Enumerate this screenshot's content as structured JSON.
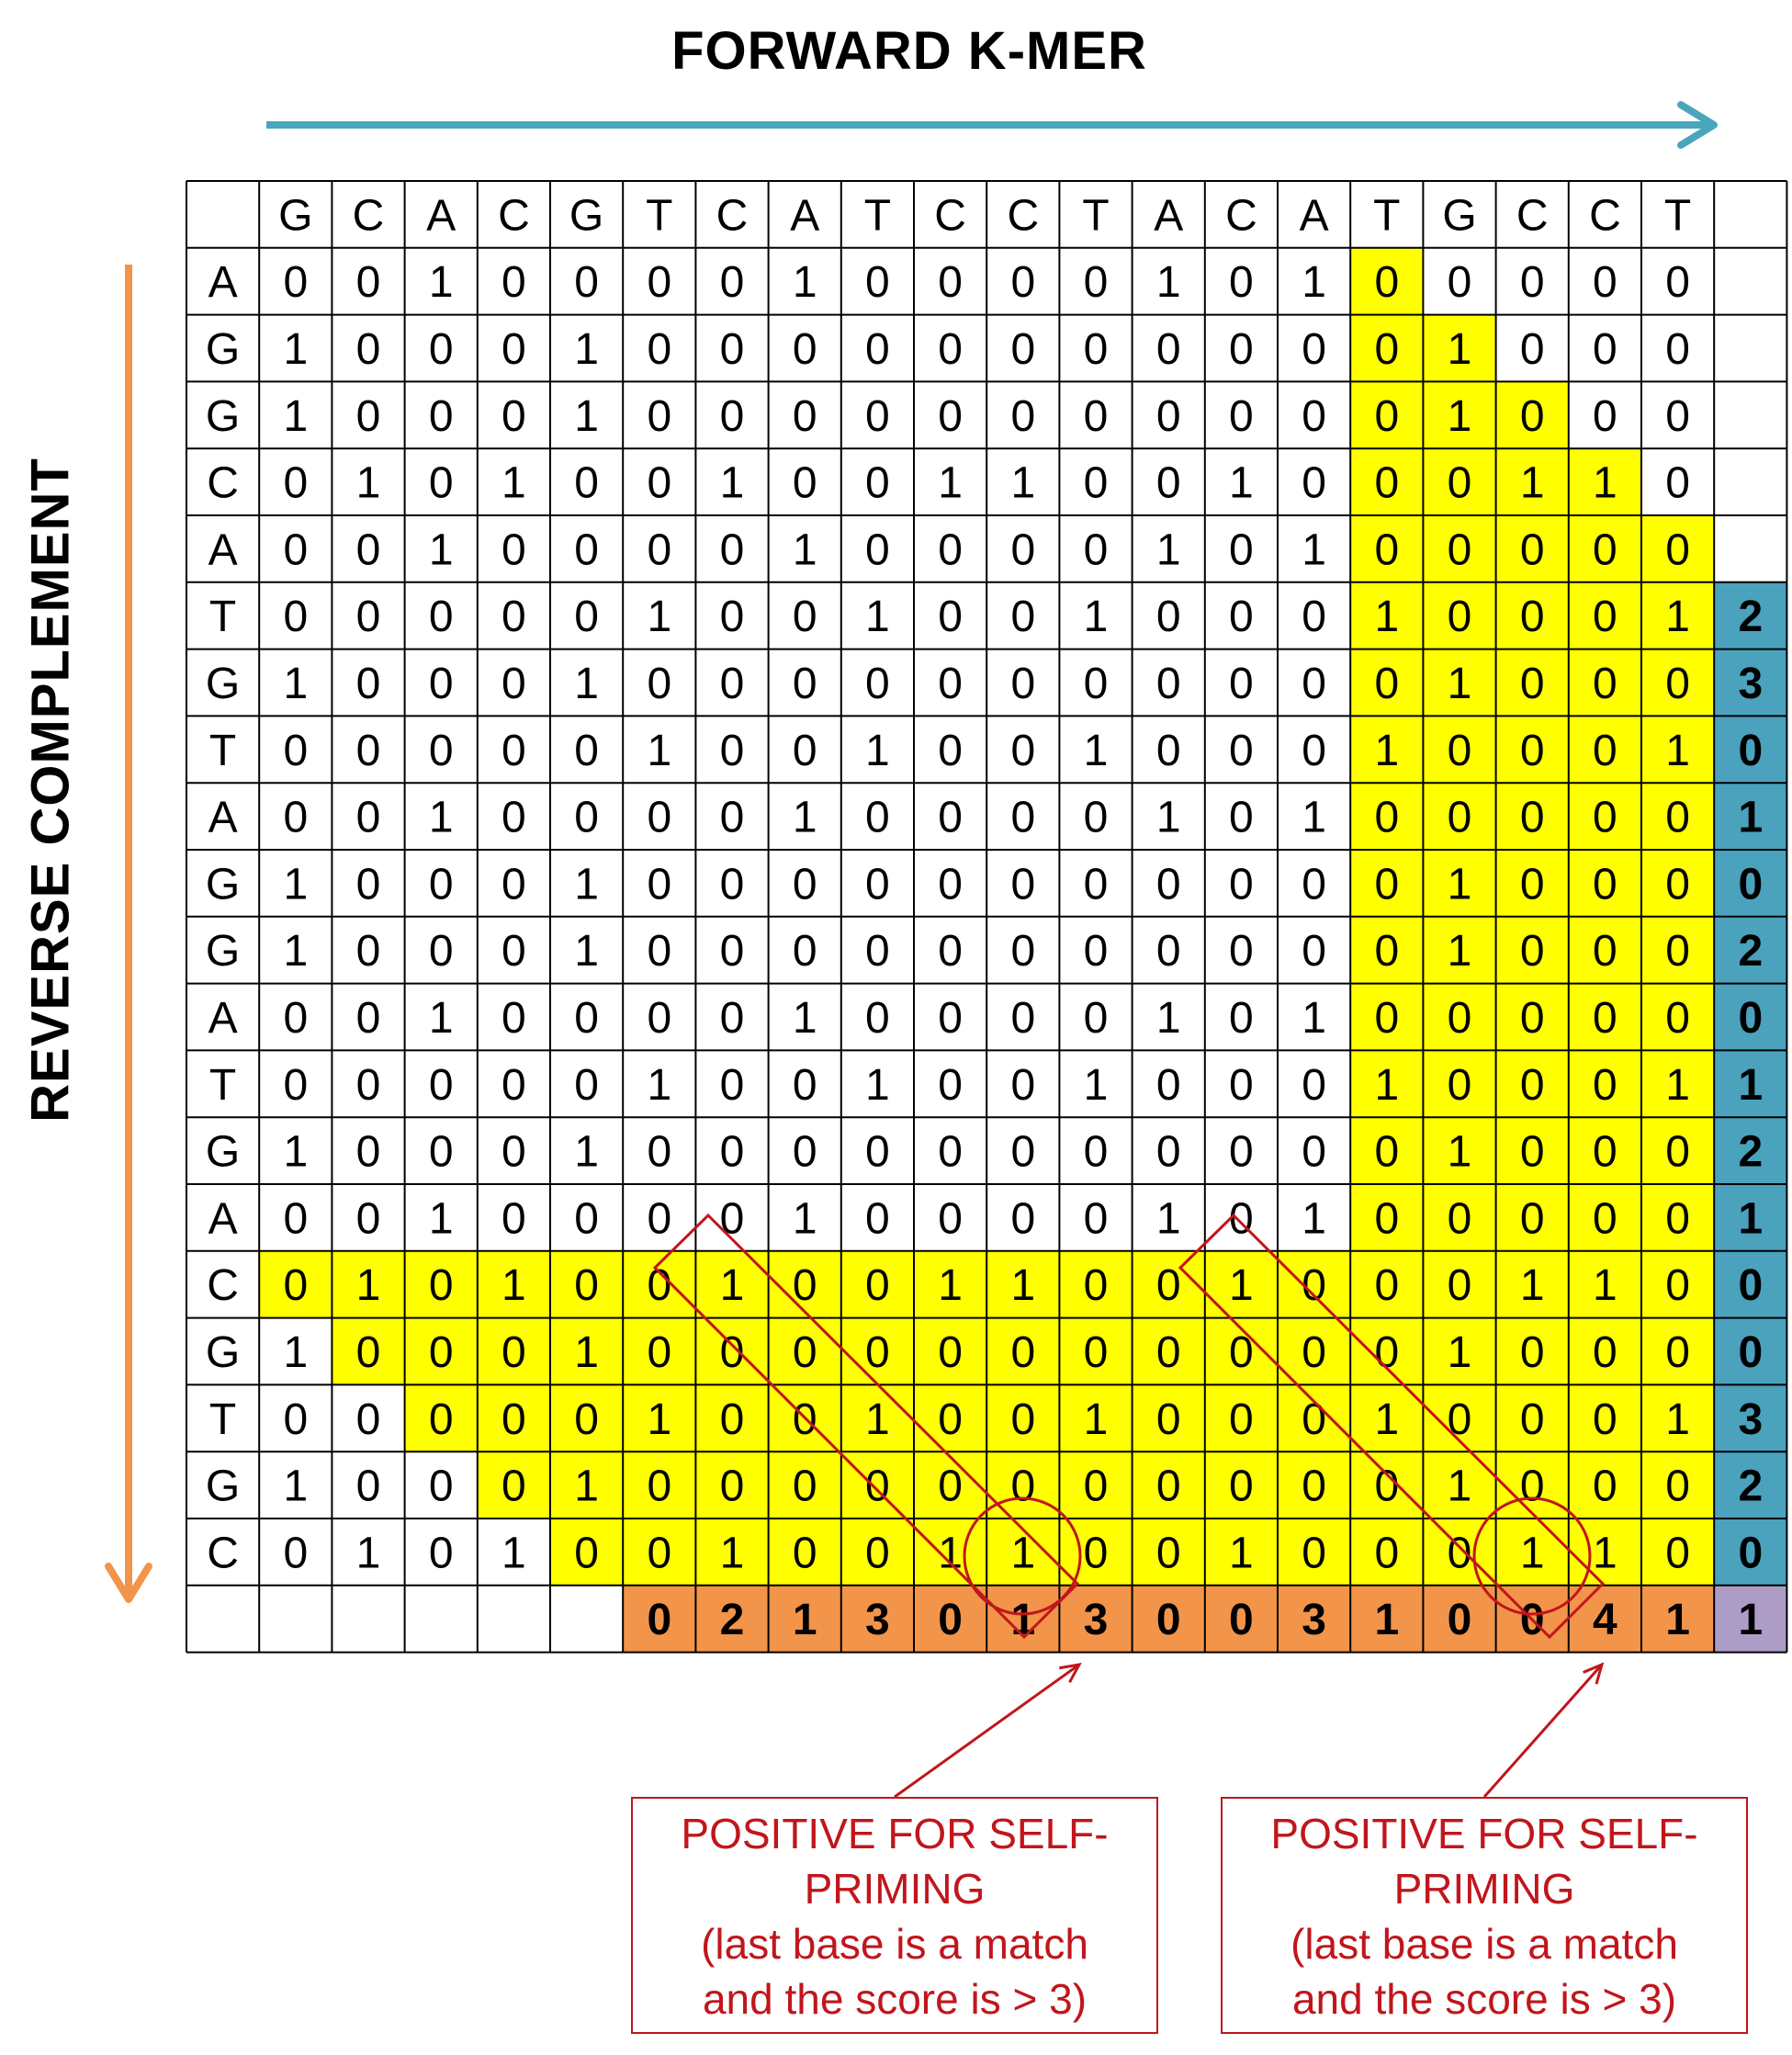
{
  "title": "FORWARD K-MER",
  "side_title": "REVERSE COMPLEMENT",
  "colors": {
    "forward_arrow": "#4aa6bd",
    "reverse_arrow": "#f2944a",
    "highlight": "#ffff00",
    "row_scores": "#4aa2bd",
    "col_scores": "#f2944a",
    "corner_score": "#ad9dc6",
    "annotation": "#c0161c"
  },
  "forward_sequence": [
    "G",
    "C",
    "A",
    "C",
    "G",
    "T",
    "C",
    "A",
    "T",
    "C",
    "C",
    "T",
    "A",
    "C",
    "A",
    "T",
    "G",
    "C",
    "C",
    "T"
  ],
  "reverse_sequence": [
    "A",
    "G",
    "G",
    "C",
    "A",
    "T",
    "G",
    "T",
    "A",
    "G",
    "G",
    "A",
    "T",
    "G",
    "A",
    "C",
    "G",
    "T",
    "G",
    "C"
  ],
  "matrix": [
    [
      0,
      0,
      1,
      0,
      0,
      0,
      0,
      1,
      0,
      0,
      0,
      0,
      1,
      0,
      1,
      0,
      0,
      0,
      0,
      0
    ],
    [
      1,
      0,
      0,
      0,
      1,
      0,
      0,
      0,
      0,
      0,
      0,
      0,
      0,
      0,
      0,
      0,
      1,
      0,
      0,
      0
    ],
    [
      1,
      0,
      0,
      0,
      1,
      0,
      0,
      0,
      0,
      0,
      0,
      0,
      0,
      0,
      0,
      0,
      1,
      0,
      0,
      0
    ],
    [
      0,
      1,
      0,
      1,
      0,
      0,
      1,
      0,
      0,
      1,
      1,
      0,
      0,
      1,
      0,
      0,
      0,
      1,
      1,
      0
    ],
    [
      0,
      0,
      1,
      0,
      0,
      0,
      0,
      1,
      0,
      0,
      0,
      0,
      1,
      0,
      1,
      0,
      0,
      0,
      0,
      0
    ],
    [
      0,
      0,
      0,
      0,
      0,
      1,
      0,
      0,
      1,
      0,
      0,
      1,
      0,
      0,
      0,
      1,
      0,
      0,
      0,
      1
    ],
    [
      1,
      0,
      0,
      0,
      1,
      0,
      0,
      0,
      0,
      0,
      0,
      0,
      0,
      0,
      0,
      0,
      1,
      0,
      0,
      0
    ],
    [
      0,
      0,
      0,
      0,
      0,
      1,
      0,
      0,
      1,
      0,
      0,
      1,
      0,
      0,
      0,
      1,
      0,
      0,
      0,
      1
    ],
    [
      0,
      0,
      1,
      0,
      0,
      0,
      0,
      1,
      0,
      0,
      0,
      0,
      1,
      0,
      1,
      0,
      0,
      0,
      0,
      0
    ],
    [
      1,
      0,
      0,
      0,
      1,
      0,
      0,
      0,
      0,
      0,
      0,
      0,
      0,
      0,
      0,
      0,
      1,
      0,
      0,
      0
    ],
    [
      1,
      0,
      0,
      0,
      1,
      0,
      0,
      0,
      0,
      0,
      0,
      0,
      0,
      0,
      0,
      0,
      1,
      0,
      0,
      0
    ],
    [
      0,
      0,
      1,
      0,
      0,
      0,
      0,
      1,
      0,
      0,
      0,
      0,
      1,
      0,
      1,
      0,
      0,
      0,
      0,
      0
    ],
    [
      0,
      0,
      0,
      0,
      0,
      1,
      0,
      0,
      1,
      0,
      0,
      1,
      0,
      0,
      0,
      1,
      0,
      0,
      0,
      1
    ],
    [
      1,
      0,
      0,
      0,
      1,
      0,
      0,
      0,
      0,
      0,
      0,
      0,
      0,
      0,
      0,
      0,
      1,
      0,
      0,
      0
    ],
    [
      0,
      0,
      1,
      0,
      0,
      0,
      0,
      1,
      0,
      0,
      0,
      0,
      1,
      0,
      1,
      0,
      0,
      0,
      0,
      0
    ],
    [
      0,
      1,
      0,
      1,
      0,
      0,
      1,
      0,
      0,
      1,
      1,
      0,
      0,
      1,
      0,
      0,
      0,
      1,
      1,
      0
    ],
    [
      1,
      0,
      0,
      0,
      1,
      0,
      0,
      0,
      0,
      0,
      0,
      0,
      0,
      0,
      0,
      0,
      1,
      0,
      0,
      0
    ],
    [
      0,
      0,
      0,
      0,
      0,
      1,
      0,
      0,
      1,
      0,
      0,
      1,
      0,
      0,
      0,
      1,
      0,
      0,
      0,
      1
    ],
    [
      1,
      0,
      0,
      0,
      1,
      0,
      0,
      0,
      0,
      0,
      0,
      0,
      0,
      0,
      0,
      0,
      1,
      0,
      0,
      0
    ],
    [
      0,
      1,
      0,
      1,
      0,
      0,
      1,
      0,
      0,
      1,
      1,
      0,
      0,
      1,
      0,
      0,
      0,
      1,
      1,
      0
    ]
  ],
  "highlight_rows": [
    [
      15,
      19
    ],
    [
      15,
      19
    ],
    [
      15,
      19
    ],
    [
      15,
      19
    ],
    [
      15,
      19
    ],
    [
      15,
      19
    ],
    [
      15,
      19
    ],
    [
      15,
      19
    ],
    [
      15,
      19
    ],
    [
      15,
      19
    ],
    [
      15,
      19
    ],
    [
      15,
      19
    ],
    [
      15,
      19
    ],
    [
      15,
      19
    ],
    [
      15,
      19
    ],
    [
      0,
      19
    ],
    [
      1,
      19
    ],
    [
      2,
      19
    ],
    [
      3,
      19
    ],
    [
      4,
      19
    ]
  ],
  "highlight_extra": [
    [
      0,
      15
    ],
    [
      1,
      15
    ],
    [
      1,
      16
    ],
    [
      2,
      15
    ],
    [
      2,
      16
    ],
    [
      2,
      17
    ],
    [
      3,
      15
    ],
    [
      3,
      16
    ],
    [
      3,
      17
    ],
    [
      3,
      18
    ],
    [
      4,
      15
    ],
    [
      4,
      16
    ],
    [
      4,
      17
    ],
    [
      4,
      18
    ],
    [
      4,
      19
    ]
  ],
  "row_scores": [
    "",
    "",
    "",
    "",
    "",
    "2",
    "3",
    "0",
    "1",
    "0",
    "2",
    "0",
    "1",
    "2",
    "1",
    "0",
    "0",
    "3",
    "2",
    "0"
  ],
  "col_scores": [
    "",
    "",
    "",
    "",
    "",
    "0",
    "2",
    "1",
    "3",
    "0",
    "1",
    "3",
    "0",
    "0",
    "3",
    "1",
    "0",
    "0",
    "4",
    "1"
  ],
  "corner_score": "1",
  "annotations": [
    {
      "lines": [
        "POSITIVE FOR SELF-",
        "PRIMING",
        "(last base is a match",
        "and the score is > 3)"
      ]
    },
    {
      "lines": [
        "POSITIVE FOR SELF-",
        "PRIMING",
        "(last base is a match",
        "and the score is > 3)"
      ]
    }
  ]
}
